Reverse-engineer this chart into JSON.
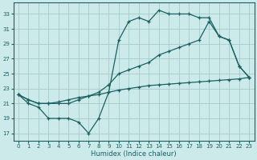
{
  "xlabel": "Humidex (Indice chaleur)",
  "bg_color": "#cdeaea",
  "grid_color": "#aacece",
  "line_color": "#1a6060",
  "xlim": [
    -0.5,
    23.5
  ],
  "ylim": [
    16,
    34.5
  ],
  "yticks": [
    17,
    19,
    21,
    23,
    25,
    27,
    29,
    31,
    33
  ],
  "xticks": [
    0,
    1,
    2,
    3,
    4,
    5,
    6,
    7,
    8,
    9,
    10,
    11,
    12,
    13,
    14,
    15,
    16,
    17,
    18,
    19,
    20,
    21,
    22,
    23
  ],
  "line1_x": [
    0,
    1,
    2,
    3,
    4,
    5,
    6,
    7,
    8,
    9,
    10,
    11,
    12,
    13,
    14,
    15,
    16,
    17,
    18,
    19,
    20,
    21,
    22,
    23
  ],
  "line1_y": [
    22.2,
    21.0,
    20.5,
    19.0,
    19.0,
    19.0,
    18.5,
    17.0,
    19.0,
    22.5,
    29.5,
    32.0,
    32.5,
    32.0,
    33.5,
    33.0,
    33.0,
    33.0,
    32.5,
    32.5,
    30.0,
    29.5,
    26.0,
    24.5
  ],
  "line2_x": [
    0,
    1,
    2,
    3,
    4,
    5,
    6,
    7,
    8,
    9,
    10,
    11,
    12,
    13,
    14,
    15,
    16,
    17,
    18,
    19,
    20,
    21,
    22,
    23
  ],
  "line2_y": [
    22.2,
    21.5,
    21.0,
    21.0,
    21.0,
    21.0,
    21.5,
    22.0,
    22.5,
    23.5,
    25.0,
    25.5,
    26.0,
    26.5,
    27.5,
    28.0,
    28.5,
    29.0,
    29.5,
    32.0,
    30.0,
    29.5,
    26.0,
    24.5
  ],
  "line3_x": [
    0,
    1,
    2,
    3,
    4,
    5,
    6,
    7,
    8,
    9,
    10,
    11,
    12,
    13,
    14,
    15,
    16,
    17,
    18,
    19,
    20,
    21,
    22,
    23
  ],
  "line3_y": [
    22.2,
    21.5,
    21.0,
    21.0,
    21.2,
    21.5,
    21.8,
    22.0,
    22.2,
    22.5,
    22.8,
    23.0,
    23.2,
    23.4,
    23.5,
    23.6,
    23.7,
    23.8,
    23.9,
    24.0,
    24.1,
    24.2,
    24.3,
    24.5
  ]
}
